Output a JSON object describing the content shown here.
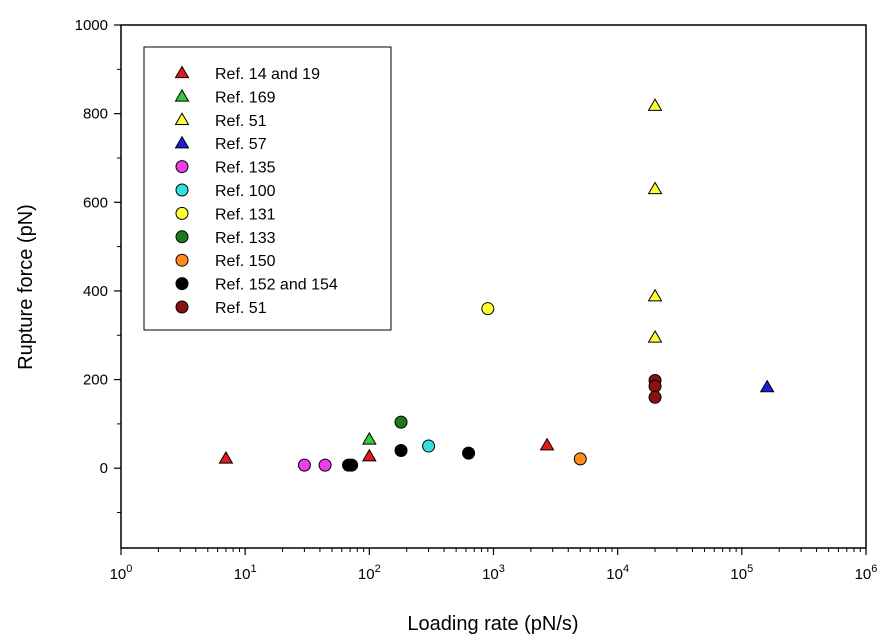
{
  "chart_data": {
    "type": "scatter",
    "title": "",
    "xlabel": "Loading rate (pN/s)",
    "ylabel": "Rupture force (pN)",
    "xscale": "log",
    "xlim": [
      1,
      1000000
    ],
    "ylim": [
      -180,
      1000
    ],
    "x_ticks": [
      {
        "value": 1,
        "base": "10",
        "exp": "0"
      },
      {
        "value": 10,
        "base": "10",
        "exp": "1"
      },
      {
        "value": 100,
        "base": "10",
        "exp": "2"
      },
      {
        "value": 1000,
        "base": "10",
        "exp": "3"
      },
      {
        "value": 10000,
        "base": "10",
        "exp": "4"
      },
      {
        "value": 100000,
        "base": "10",
        "exp": "5"
      },
      {
        "value": 1000000,
        "base": "10",
        "exp": "6"
      }
    ],
    "y_ticks": [
      0,
      200,
      400,
      600,
      800,
      1000
    ],
    "grid": false,
    "legend_position": "top-left",
    "series": [
      {
        "name": "Ref. 14 and 19",
        "marker": "triangle",
        "color": "#e31a1c",
        "points": [
          [
            7,
            22
          ],
          [
            100,
            27
          ],
          [
            2700,
            52
          ]
        ]
      },
      {
        "name": "Ref. 169",
        "marker": "triangle",
        "color": "#33cc33",
        "points": [
          [
            100,
            65
          ]
        ]
      },
      {
        "name": "Ref. 51",
        "marker": "triangle",
        "color": "#ffff33",
        "points": [
          [
            20000,
            818
          ],
          [
            20000,
            630
          ],
          [
            20000,
            388
          ],
          [
            20000,
            295
          ]
        ]
      },
      {
        "name": "Ref. 57",
        "marker": "triangle",
        "color": "#1f1fd6",
        "points": [
          [
            160000,
            183
          ]
        ]
      },
      {
        "name": "Ref. 135",
        "marker": "circle",
        "color": "#ee3ee8",
        "points": [
          [
            30,
            7
          ],
          [
            44,
            7
          ]
        ]
      },
      {
        "name": "Ref. 100",
        "marker": "circle",
        "color": "#33e0e0",
        "points": [
          [
            300,
            50
          ]
        ]
      },
      {
        "name": "Ref. 131",
        "marker": "circle",
        "color": "#ffff33",
        "points": [
          [
            900,
            360
          ]
        ]
      },
      {
        "name": "Ref. 133",
        "marker": "circle",
        "color": "#1a7a1a",
        "points": [
          [
            180,
            104
          ]
        ]
      },
      {
        "name": "Ref. 150",
        "marker": "circle",
        "color": "#ff8c1a",
        "points": [
          [
            5000,
            21
          ]
        ]
      },
      {
        "name": "Ref. 152 and 154",
        "marker": "circle",
        "color": "#000000",
        "points": [
          [
            68,
            7
          ],
          [
            72,
            7
          ],
          [
            180,
            40
          ],
          [
            630,
            34
          ]
        ]
      },
      {
        "name": "Ref. 51",
        "marker": "circle",
        "color": "#8b1010",
        "points": [
          [
            20000,
            198
          ],
          [
            20000,
            185
          ],
          [
            20000,
            160
          ]
        ]
      }
    ]
  }
}
